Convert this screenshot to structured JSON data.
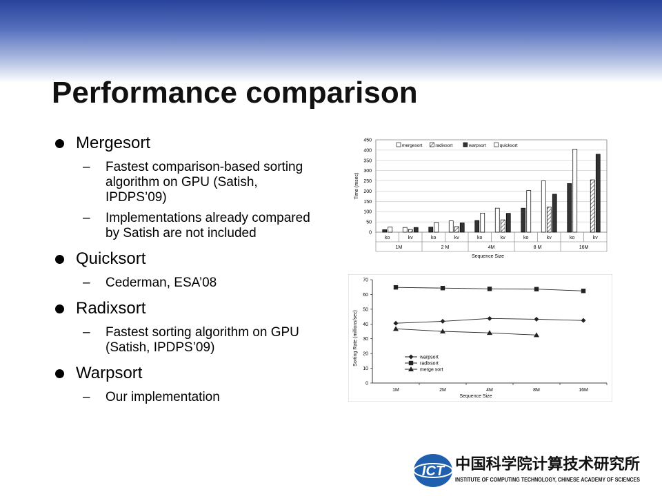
{
  "slide": {
    "title": "Performance comparison",
    "bullets": [
      {
        "label": "Mergesort",
        "subs": [
          "Fastest comparison-based sorting algorithm on GPU (Satish, IPDPS’09)",
          "Implementations already compared by Satish are not included"
        ]
      },
      {
        "label": "Quicksort",
        "subs": [
          "Cederman, ESA’08"
        ]
      },
      {
        "label": "Radixsort",
        "subs": [
          "Fastest sorting algorithm on GPU (Satish, IPDPS’09)"
        ]
      },
      {
        "label": "Warpsort",
        "subs": [
          "Our implementation"
        ]
      }
    ]
  },
  "logo": {
    "mark": "ICT",
    "cn_name": "中国科学院计算技术研究所",
    "en_name": "INSTITUTE OF COMPUTING TECHNOLOGY, CHINESE ACADEMY OF SCIENCES"
  },
  "chart_data": [
    {
      "type": "bar",
      "title": "",
      "ylabel": "Time (msec)",
      "xlabel": "Sequence Size",
      "ylim": [
        0,
        450
      ],
      "yticks": [
        0,
        50,
        100,
        150,
        200,
        250,
        300,
        350,
        400,
        450
      ],
      "categories": [
        "ko",
        "kv",
        "ko",
        "kv",
        "ko",
        "kv",
        "ko",
        "kv",
        "ko",
        "kv"
      ],
      "groups": [
        "1M",
        "2 M",
        "4M",
        "8 M",
        "16M"
      ],
      "legend_position": "top",
      "series": [
        {
          "name": "mergesort",
          "values": [
            null,
            23,
            null,
            55,
            null,
            117,
            null,
            250,
            null,
            null
          ]
        },
        {
          "name": "radixsort",
          "values": [
            null,
            13,
            null,
            27,
            null,
            60,
            null,
            123,
            null,
            255
          ]
        },
        {
          "name": "warpsort",
          "values": [
            12,
            23,
            25,
            45,
            57,
            92,
            117,
            185,
            237,
            380
          ]
        },
        {
          "name": "quicksort",
          "values": [
            25,
            null,
            47,
            null,
            93,
            null,
            203,
            null,
            405,
            null
          ]
        }
      ],
      "colors": {
        "mergesort": "#ffffff",
        "radixsort": "#ffffff",
        "warpsort": "#333333",
        "quicksort": "#ffffff"
      }
    },
    {
      "type": "line",
      "title": "",
      "ylabel": "Sorting Rate (millions/sec)",
      "xlabel": "Sequence Size",
      "ylim": [
        0,
        70
      ],
      "yticks": [
        0,
        10,
        20,
        30,
        40,
        50,
        60,
        70
      ],
      "categories": [
        "1M",
        "2M",
        "4M",
        "8M",
        "16M"
      ],
      "legend_position": "bottom-left",
      "series": [
        {
          "name": "warpsort",
          "marker": "diamond",
          "values": [
            40.5,
            41.8,
            43.7,
            43.2,
            42.4
          ]
        },
        {
          "name": "radixsort",
          "marker": "square",
          "values": [
            64.8,
            64.3,
            63.8,
            63.6,
            62.4
          ]
        },
        {
          "name": "merge sort",
          "marker": "triangle",
          "values": [
            36.7,
            35.0,
            34.0,
            32.5,
            null
          ]
        }
      ]
    }
  ]
}
